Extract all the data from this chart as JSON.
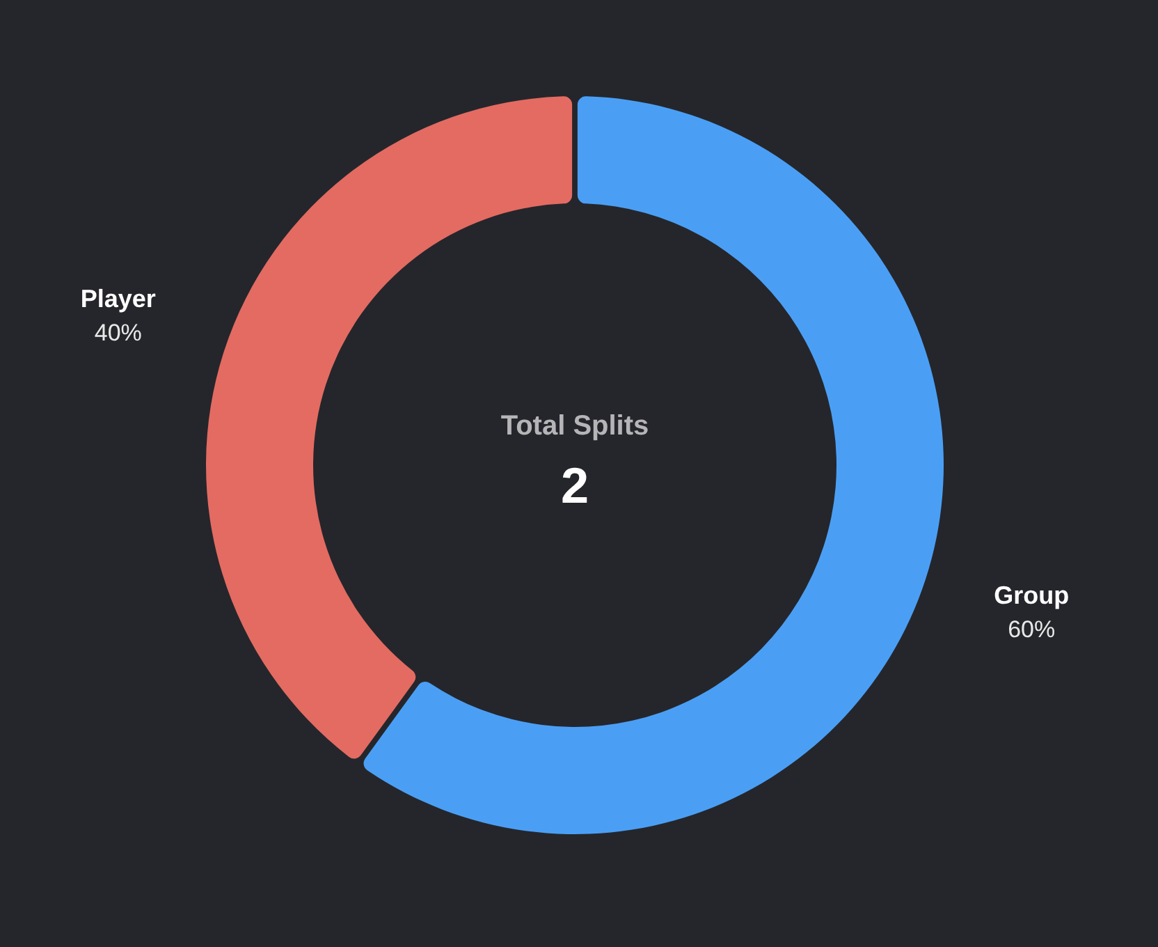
{
  "chart_data": {
    "type": "donut",
    "categories": [
      "Group",
      "Player"
    ],
    "values": [
      60,
      40
    ],
    "colors": [
      "#4a9ff5",
      "#e36b62"
    ],
    "value_labels": [
      "60%",
      "40%"
    ],
    "annotations": [
      "Total Splits",
      "2"
    ]
  }
}
